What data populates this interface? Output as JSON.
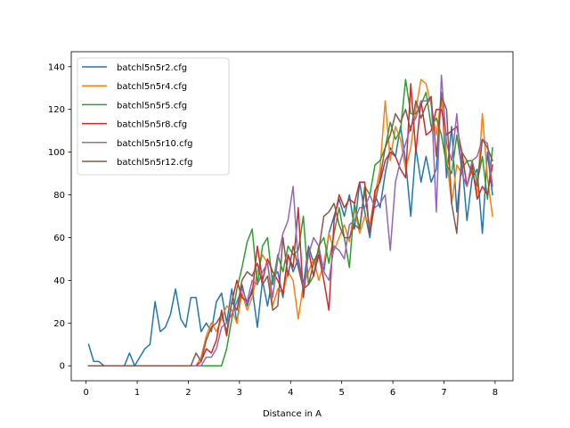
{
  "chart_data": {
    "type": "line",
    "title": "",
    "xlabel": "Distance in A",
    "ylabel": "",
    "xlim": [
      -0.29,
      8.35
    ],
    "ylim": [
      -7,
      147
    ],
    "xticks": [
      0,
      1,
      2,
      3,
      4,
      5,
      6,
      7,
      8
    ],
    "yticks": [
      0,
      20,
      40,
      60,
      80,
      100,
      120,
      140
    ],
    "grid": false,
    "legend_position": "top-left",
    "x": [
      0.05,
      0.15,
      0.25,
      0.35,
      0.45,
      0.55,
      0.65,
      0.75,
      0.85,
      0.95,
      1.05,
      1.15,
      1.25,
      1.35,
      1.45,
      1.55,
      1.65,
      1.75,
      1.85,
      1.95,
      2.05,
      2.15,
      2.25,
      2.35,
      2.45,
      2.55,
      2.65,
      2.75,
      2.85,
      2.95,
      3.05,
      3.15,
      3.25,
      3.35,
      3.45,
      3.55,
      3.65,
      3.75,
      3.85,
      3.95,
      4.05,
      4.15,
      4.25,
      4.35,
      4.45,
      4.55,
      4.65,
      4.75,
      4.85,
      4.95,
      5.05,
      5.15,
      5.25,
      5.35,
      5.45,
      5.55,
      5.65,
      5.75,
      5.85,
      5.95,
      6.05,
      6.15,
      6.25,
      6.35,
      6.45,
      6.55,
      6.65,
      6.75,
      6.85,
      6.95,
      7.05,
      7.15,
      7.25,
      7.35,
      7.45,
      7.55,
      7.65,
      7.75,
      7.85,
      7.95
    ],
    "series": [
      {
        "name": "batchl5n5r2.cfg",
        "color": "#1f77b4",
        "values": [
          10,
          2,
          2,
          0,
          0,
          0,
          0,
          0,
          6,
          0,
          4,
          8,
          10,
          30,
          16,
          18,
          24,
          36,
          22,
          18,
          32,
          32,
          16,
          20,
          16,
          30,
          34,
          20,
          36,
          20,
          38,
          28,
          36,
          18,
          40,
          28,
          42,
          44,
          32,
          52,
          44,
          50,
          38,
          56,
          48,
          54,
          44,
          62,
          70,
          78,
          70,
          80,
          64,
          86,
          72,
          60,
          80,
          74,
          90,
          102,
          98,
          112,
          96,
          70,
          102,
          86,
          98,
          86,
          92,
          128,
          88,
          112,
          72,
          96,
          68,
          88,
          92,
          62,
          100,
          80
        ]
      },
      {
        "name": "batchl5n5r4.cfg",
        "color": "#ff7f0e",
        "values": [
          0,
          0,
          0,
          0,
          0,
          0,
          0,
          0,
          0,
          0,
          0,
          0,
          0,
          0,
          0,
          0,
          0,
          0,
          0,
          0,
          0,
          0,
          4,
          14,
          20,
          16,
          22,
          28,
          26,
          20,
          34,
          26,
          32,
          44,
          52,
          48,
          28,
          36,
          34,
          44,
          40,
          22,
          38,
          44,
          50,
          40,
          48,
          62,
          54,
          60,
          66,
          58,
          74,
          62,
          70,
          66,
          80,
          92,
          124,
          96,
          112,
          106,
          92,
          102,
          120,
          134,
          132,
          122,
          108,
          126,
          98,
          76,
          94,
          90,
          84,
          92,
          80,
          118,
          88,
          70
        ]
      },
      {
        "name": "batchl5n5r5.cfg",
        "color": "#2ca02c",
        "values": [
          0,
          0,
          0,
          0,
          0,
          0,
          0,
          0,
          0,
          0,
          0,
          0,
          0,
          0,
          0,
          0,
          0,
          0,
          0,
          0,
          0,
          0,
          0,
          0,
          0,
          0,
          0,
          8,
          22,
          36,
          46,
          58,
          64,
          38,
          56,
          60,
          38,
          52,
          44,
          56,
          52,
          54,
          70,
          38,
          42,
          56,
          60,
          48,
          62,
          74,
          60,
          46,
          76,
          64,
          84,
          80,
          94,
          96,
          102,
          114,
          106,
          110,
          134,
          118,
          118,
          122,
          128,
          112,
          116,
          108,
          94,
          90,
          108,
          92,
          96,
          96,
          86,
          98,
          78,
          102
        ]
      },
      {
        "name": "batchl5n5r8.cfg",
        "color": "#d62728",
        "values": [
          0,
          0,
          0,
          0,
          0,
          0,
          0,
          0,
          0,
          0,
          0,
          0,
          0,
          0,
          0,
          0,
          0,
          0,
          0,
          0,
          0,
          0,
          2,
          8,
          6,
          12,
          26,
          14,
          30,
          40,
          32,
          30,
          34,
          56,
          40,
          50,
          44,
          40,
          34,
          52,
          46,
          74,
          32,
          54,
          42,
          52,
          40,
          26,
          68,
          80,
          74,
          78,
          76,
          86,
          86,
          62,
          82,
          86,
          96,
          100,
          98,
          92,
          88,
          132,
          100,
          124,
          108,
          110,
          120,
          120,
          108,
          110,
          112,
          100,
          84,
          94,
          78,
          84,
          80,
          94
        ]
      },
      {
        "name": "batchl5n5r10.cfg",
        "color": "#9467bd",
        "values": [
          0,
          0,
          0,
          0,
          0,
          0,
          0,
          0,
          0,
          0,
          0,
          0,
          0,
          0,
          0,
          0,
          0,
          0,
          0,
          0,
          0,
          0,
          0,
          4,
          4,
          8,
          18,
          20,
          24,
          30,
          36,
          30,
          40,
          38,
          44,
          48,
          32,
          50,
          62,
          68,
          84,
          48,
          36,
          52,
          60,
          56,
          44,
          40,
          56,
          54,
          50,
          66,
          68,
          74,
          74,
          80,
          74,
          76,
          80,
          54,
          86,
          96,
          104,
          112,
          116,
          124,
          124,
          126,
          72,
          136,
          104,
          96,
          118,
          90,
          84,
          96,
          98,
          106,
          104,
          84
        ]
      },
      {
        "name": "batchl5n5r12.cfg",
        "color": "#8c564b",
        "values": [
          0,
          0,
          0,
          0,
          0,
          0,
          0,
          0,
          0,
          0,
          0,
          0,
          0,
          0,
          0,
          0,
          0,
          0,
          0,
          0,
          0,
          6,
          2,
          12,
          18,
          20,
          24,
          16,
          30,
          26,
          40,
          44,
          42,
          48,
          38,
          42,
          26,
          28,
          60,
          42,
          56,
          46,
          36,
          38,
          48,
          54,
          70,
          72,
          76,
          66,
          60,
          60,
          66,
          64,
          82,
          62,
          76,
          88,
          102,
          108,
          118,
          114,
          120,
          110,
          124,
          116,
          122,
          126,
          98,
          126,
          120,
          76,
          62,
          100,
          96,
          90,
          84,
          106,
          102,
          96
        ]
      }
    ]
  }
}
